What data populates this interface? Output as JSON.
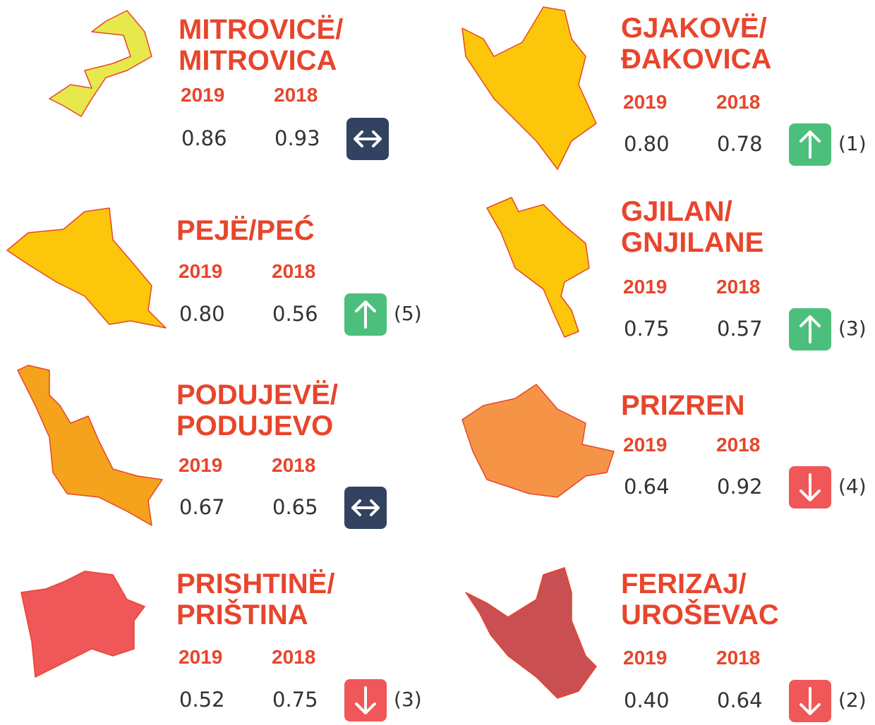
{
  "years": [
    "2019",
    "2018"
  ],
  "cards": [
    {
      "name": [
        "MITROVICË/",
        "MITROVICA"
      ],
      "values": [
        "0.86",
        "0.93"
      ]
    },
    {
      "name": [
        "GJAKOVË/",
        "ĐAKOVICA"
      ],
      "values": [
        "0.80",
        "0.78"
      ],
      "rank": "(1)"
    },
    {
      "name": [
        "PEJË/PEĆ"
      ],
      "values": [
        "0.80",
        "0.56"
      ],
      "rank": "(5)"
    },
    {
      "name": [
        "GJILAN/",
        "GNJILANE"
      ],
      "values": [
        "0.75",
        "0.57"
      ],
      "rank": "(3)"
    },
    {
      "name": [
        "PODUJEVË/",
        "PODUJEVO"
      ],
      "values": [
        "0.67",
        "0.65"
      ]
    },
    {
      "name": [
        "PRIZREN"
      ],
      "values": [
        "0.64",
        "0.92"
      ],
      "rank": "(4)"
    },
    {
      "name": [
        "PRISHTINË/",
        "PRIŠTINA"
      ],
      "values": [
        "0.52",
        "0.75"
      ],
      "rank": "(3)"
    },
    {
      "name": [
        "FERIZAJ/",
        "UROŠEVAC"
      ],
      "values": [
        "0.40",
        "0.64"
      ],
      "rank": "(2)"
    }
  ]
}
